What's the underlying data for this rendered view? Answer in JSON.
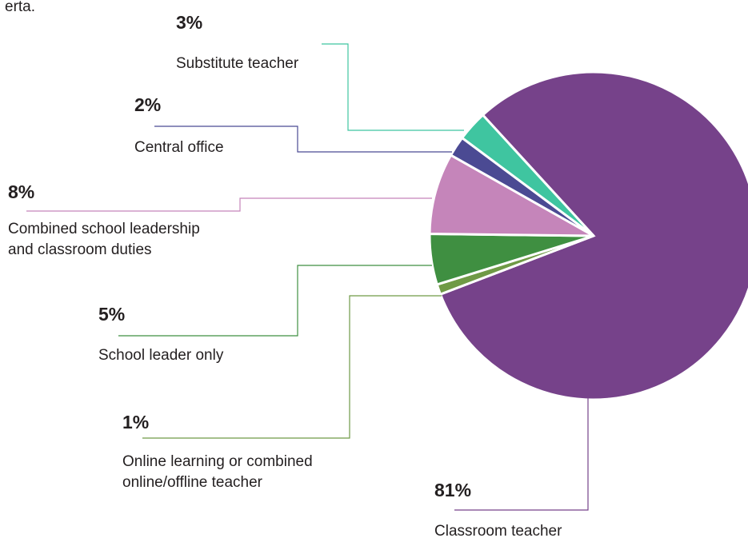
{
  "top_text": "erta.",
  "chart_data": {
    "type": "pie",
    "categories": [
      [
        "Classroom teacher"
      ],
      [
        "Online learning or combined",
        "online/offline teacher"
      ],
      [
        "School leader only"
      ],
      [
        "Combined school leadership",
        "and classroom duties"
      ],
      [
        "Central office"
      ],
      [
        "Substitute teacher"
      ]
    ],
    "values": [
      81,
      1,
      5,
      8,
      2,
      3
    ],
    "value_labels": [
      "81%",
      "1%",
      "5%",
      "8%",
      "2%",
      "3%"
    ],
    "colors": [
      "#76428a",
      "#6f9a46",
      "#3f8f41",
      "#c585ba",
      "#4b4a93",
      "#3fc5a0"
    ],
    "label_colors": [
      "#76428a",
      "#6f9a46",
      "#1f9a3c",
      "#c585ba",
      "#4b4a93",
      "#2ab597"
    ]
  }
}
